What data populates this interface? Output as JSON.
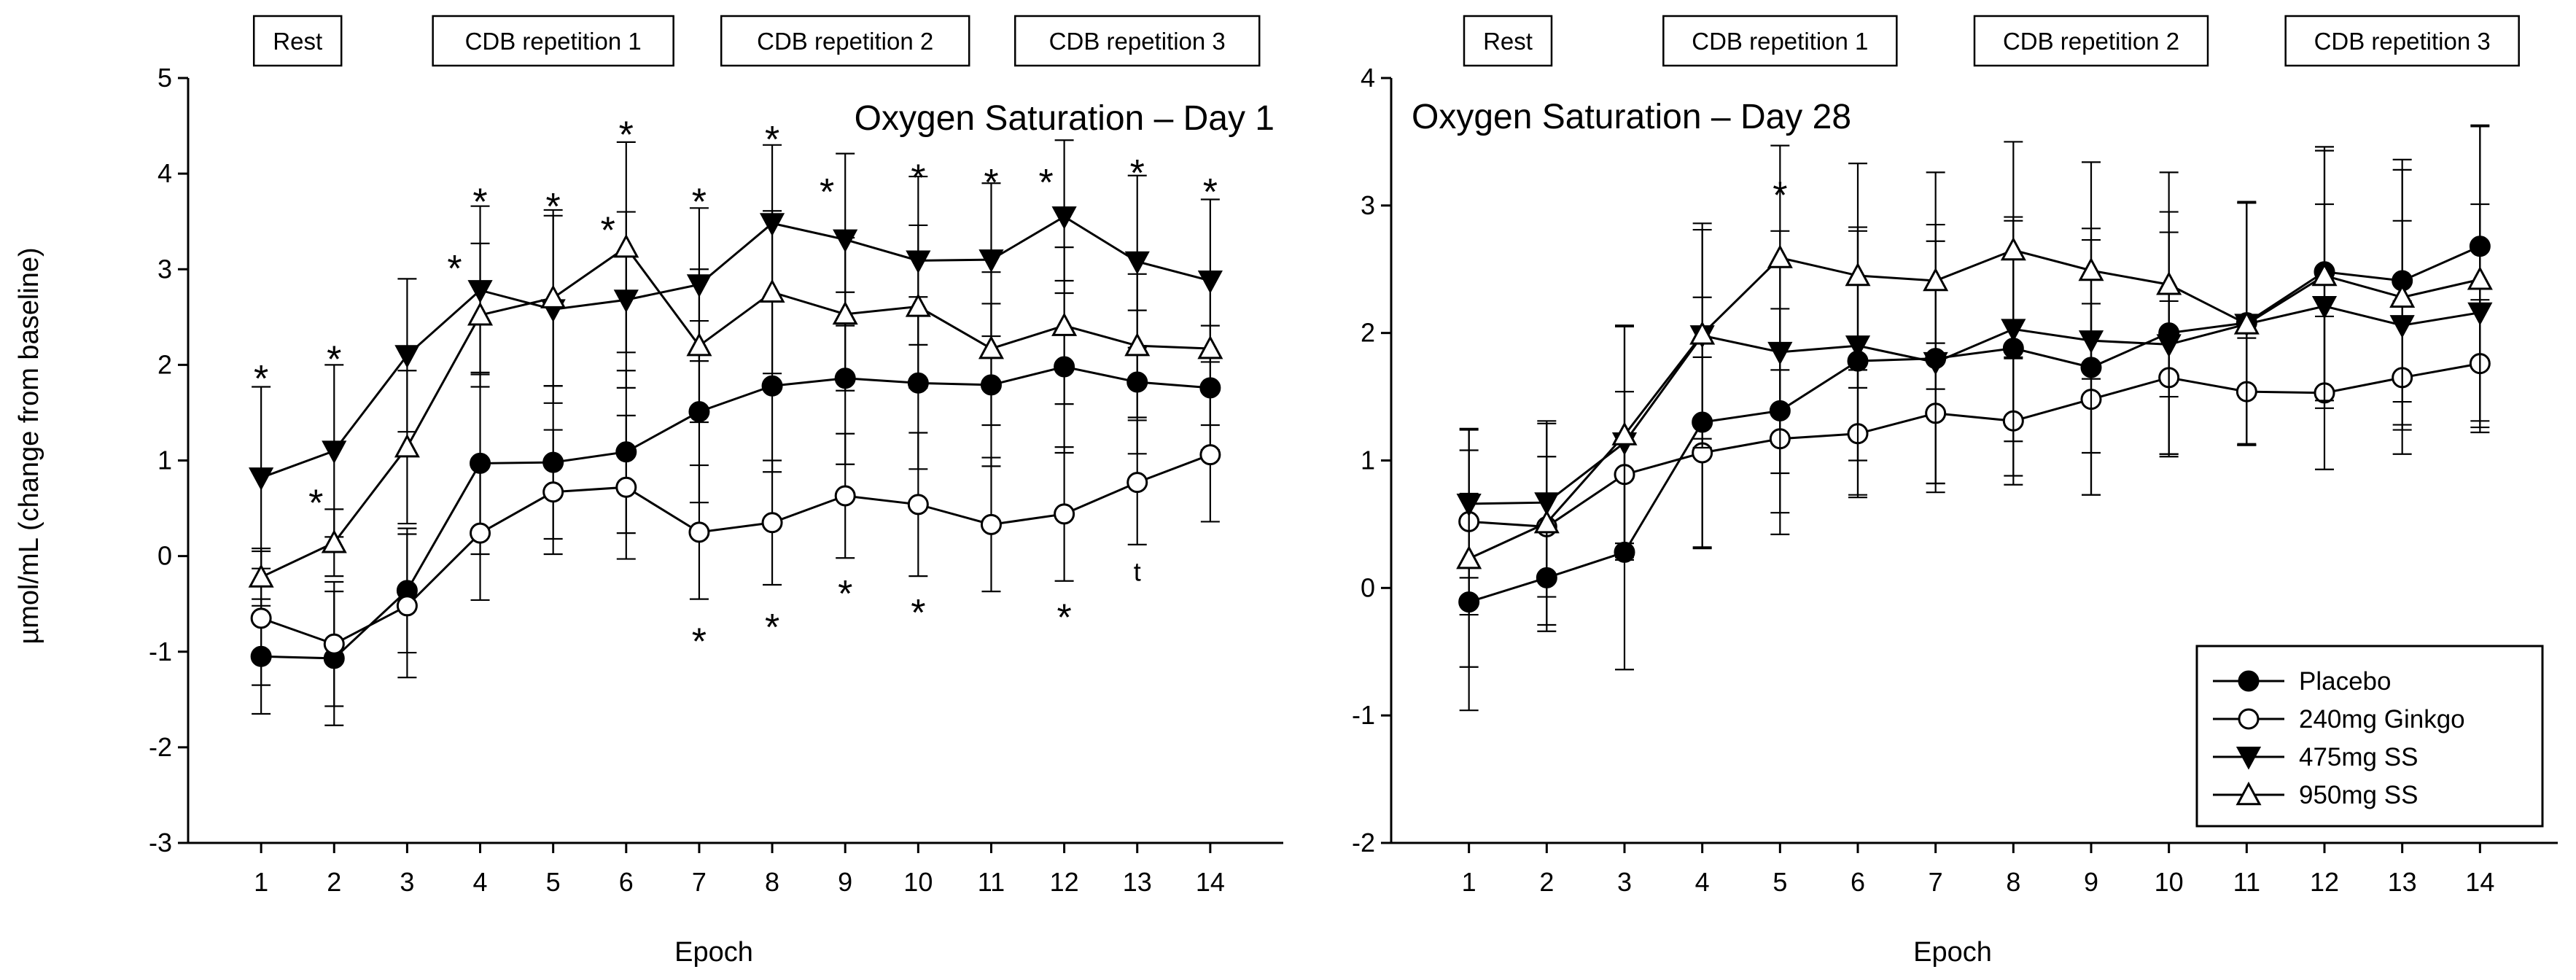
{
  "chart_data": [
    {
      "type": "line",
      "title": "Oxygen Saturation – Day 1",
      "xlabel": "Epoch",
      "ylabel": "µmol/mL (change from baseline)",
      "xlim": [
        0,
        15
      ],
      "ylim": [
        -3,
        5
      ],
      "x_ticks": [
        1,
        2,
        3,
        4,
        5,
        6,
        7,
        8,
        9,
        10,
        11,
        12,
        13,
        14
      ],
      "y_ticks": [
        -3,
        -2,
        -1,
        0,
        1,
        2,
        3,
        4,
        5
      ],
      "grid": false,
      "phase_labels": [
        {
          "label": "Rest",
          "center": 1.5
        },
        {
          "label": "CDB repetition 1",
          "center": 5
        },
        {
          "label": "CDB repetition 2",
          "center": 9
        },
        {
          "label": "CDB repetition 3",
          "center": 13
        }
      ],
      "series": [
        {
          "name": "Placebo",
          "marker": "filled-circle",
          "values": [
            -1.05,
            -1.07,
            -0.36,
            0.97,
            0.98,
            1.09,
            1.51,
            1.78,
            1.86,
            1.81,
            1.79,
            1.98,
            1.82,
            1.76
          ],
          "errors": [
            0.6,
            0.7,
            0.65,
            0.95,
            0.8,
            0.85,
            0.95,
            0.9,
            0.9,
            0.9,
            0.85,
            0.9,
            0.75,
            0.65
          ]
        },
        {
          "name": "240mg Ginkgo",
          "marker": "open-circle",
          "values": [
            -0.65,
            -0.92,
            -0.52,
            0.24,
            0.67,
            0.72,
            0.25,
            0.35,
            0.63,
            0.54,
            0.33,
            0.44,
            0.77,
            1.06
          ],
          "errors": [
            0.7,
            0.65,
            0.75,
            0.7,
            0.65,
            0.75,
            0.7,
            0.65,
            0.65,
            0.75,
            0.7,
            0.7,
            0.65,
            0.7
          ]
        },
        {
          "name": "475mg SS",
          "marker": "filled-triangle-down",
          "values": [
            0.82,
            1.1,
            2.1,
            2.78,
            2.58,
            2.68,
            2.84,
            3.48,
            3.31,
            3.09,
            3.1,
            3.55,
            3.08,
            2.88
          ],
          "errors": [
            0.95,
            0.9,
            0.8,
            0.88,
            0.98,
            0.92,
            0.8,
            0.82,
            0.9,
            0.88,
            0.8,
            0.8,
            0.9,
            0.85
          ]
        },
        {
          "name": "950mg SS",
          "marker": "open-triangle-up",
          "values": [
            -0.22,
            0.14,
            1.14,
            2.52,
            2.7,
            3.23,
            2.2,
            2.76,
            2.53,
            2.61,
            2.17,
            2.41,
            2.2,
            2.17
          ],
          "errors": [
            0.3,
            0.35,
            0.8,
            0.75,
            0.92,
            1.1,
            0.8,
            0.85,
            0.8,
            0.85,
            0.8,
            0.82,
            0.75,
            0.8
          ]
        }
      ],
      "annotations": [
        {
          "text": "*",
          "x": 1,
          "y": 1.95
        },
        {
          "text": "*",
          "x": 2,
          "y": 2.15
        },
        {
          "text": "*",
          "x": 1.75,
          "y": 0.65
        },
        {
          "text": "*",
          "x": 3.65,
          "y": 3.1
        },
        {
          "text": "*",
          "x": 4,
          "y": 3.8
        },
        {
          "text": "*",
          "x": 5,
          "y": 3.75
        },
        {
          "text": "*",
          "x": 5.75,
          "y": 3.5
        },
        {
          "text": "*",
          "x": 6,
          "y": 4.5
        },
        {
          "text": "*",
          "x": 7,
          "y": 3.8
        },
        {
          "text": "*",
          "x": 8,
          "y": 4.45
        },
        {
          "text": "*",
          "x": 8.75,
          "y": 3.9
        },
        {
          "text": "*",
          "x": 10,
          "y": 4.05
        },
        {
          "text": "*",
          "x": 11,
          "y": 4.0
        },
        {
          "text": "*",
          "x": 11.75,
          "y": 4.0
        },
        {
          "text": "*",
          "x": 13,
          "y": 4.1
        },
        {
          "text": "*",
          "x": 14,
          "y": 3.9
        },
        {
          "text": "*",
          "x": 7,
          "y": -0.8
        },
        {
          "text": "*",
          "x": 8,
          "y": -0.65
        },
        {
          "text": "*",
          "x": 9,
          "y": -0.3
        },
        {
          "text": "*",
          "x": 10,
          "y": -0.5
        },
        {
          "text": "*",
          "x": 12,
          "y": -0.55
        },
        {
          "text": "t",
          "x": 13,
          "y": -0.15
        }
      ]
    },
    {
      "type": "line",
      "title": "Oxygen Saturation – Day 28",
      "xlabel": "Epoch",
      "ylabel": "",
      "xlim": [
        0,
        15
      ],
      "ylim": [
        -2,
        4
      ],
      "x_ticks": [
        1,
        2,
        3,
        4,
        5,
        6,
        7,
        8,
        9,
        10,
        11,
        12,
        13,
        14
      ],
      "y_ticks": [
        -2,
        -1,
        0,
        1,
        2,
        3,
        4
      ],
      "grid": false,
      "legend_position": "bottom-right",
      "phase_labels": [
        {
          "label": "Rest",
          "center": 1.5
        },
        {
          "label": "CDB repetition 1",
          "center": 5
        },
        {
          "label": "CDB repetition 2",
          "center": 9
        },
        {
          "label": "CDB repetition 3",
          "center": 13
        }
      ],
      "series": [
        {
          "name": "Placebo",
          "marker": "filled-circle",
          "values": [
            -0.11,
            0.08,
            0.28,
            1.3,
            1.39,
            1.78,
            1.8,
            1.88,
            1.73,
            2.0,
            2.08,
            2.48,
            2.41,
            2.68
          ],
          "errors": [
            0.85,
            0.42,
            0.92,
            0.98,
            0.8,
            1.05,
            1.05,
            1.0,
            1.0,
            0.95,
            0.95,
            0.98,
            0.95,
            0.95
          ]
        },
        {
          "name": "240mg Ginkgo",
          "marker": "open-circle",
          "values": [
            0.52,
            0.48,
            0.89,
            1.06,
            1.17,
            1.21,
            1.37,
            1.31,
            1.48,
            1.65,
            1.54,
            1.53,
            1.65,
            1.76
          ],
          "errors": [
            0.73,
            0.55,
            0.65,
            0.75,
            0.75,
            0.5,
            0.55,
            0.5,
            0.75,
            0.6,
            0.42,
            0.6,
            0.6,
            0.5
          ]
        },
        {
          "name": "475mg SS",
          "marker": "filled-triangle-down",
          "values": [
            0.66,
            0.67,
            1.14,
            1.98,
            1.85,
            1.9,
            1.77,
            2.03,
            1.94,
            1.91,
            2.07,
            2.21,
            2.06,
            2.16
          ],
          "errors": [
            0.58,
            0.62,
            0.92,
            0.88,
            0.95,
            0.9,
            0.95,
            0.88,
            0.88,
            0.88,
            0.95,
            0.8,
            0.82,
            0.85
          ]
        },
        {
          "name": "950mg SS",
          "marker": "open-triangle-up",
          "values": [
            0.23,
            0.51,
            1.2,
            1.99,
            2.59,
            2.45,
            2.41,
            2.65,
            2.49,
            2.38,
            2.07,
            2.45,
            2.28,
            2.42
          ],
          "errors": [
            0.85,
            0.8,
            0.85,
            0.82,
            0.88,
            0.88,
            0.85,
            0.85,
            0.85,
            0.88,
            0.95,
            0.98,
            1.0,
            1.2
          ]
        }
      ],
      "annotations": [
        {
          "text": "*",
          "x": 5,
          "y": 3.15
        }
      ]
    }
  ]
}
